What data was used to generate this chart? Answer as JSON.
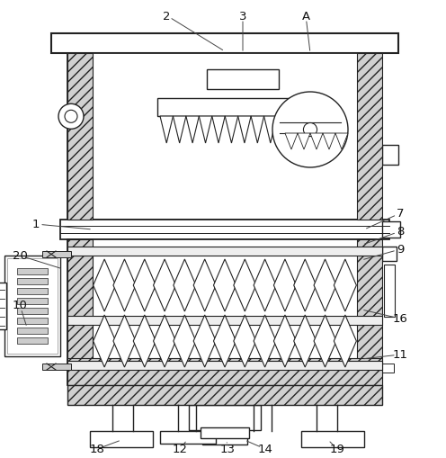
{
  "bg_color": "#ffffff",
  "line_color": "#222222",
  "fig_width": 4.96,
  "fig_height": 5.1,
  "dpi": 100
}
